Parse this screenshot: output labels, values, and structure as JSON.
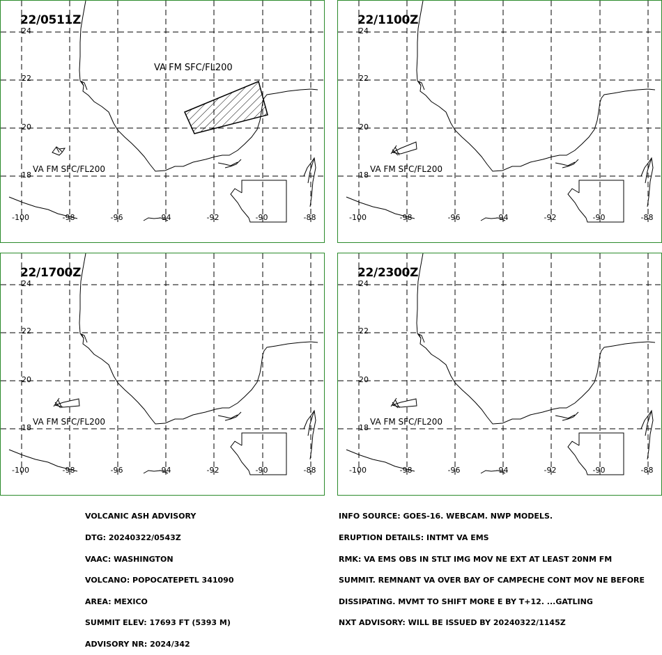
{
  "panels": [
    {
      "time": "22/0511Z",
      "label": "VA FM SFC/FL200",
      "label_top": "VA FM SFC/FL200"
    },
    {
      "time": "22/1100Z",
      "label": "VA FM SFC/FL200"
    },
    {
      "time": "22/1700Z",
      "label": "VA FM SFC/FL200"
    },
    {
      "time": "22/2300Z",
      "label": "VA FM SFC/FL200"
    }
  ],
  "axes": {
    "lat_labels": [
      "24",
      "22",
      "20",
      "18"
    ],
    "lon_labels": [
      "-100",
      "-98",
      "-96",
      "-94",
      "-92",
      "-90",
      "-88"
    ]
  },
  "advisory_left": [
    "VOLCANIC ASH ADVISORY",
    "DTG: 20240322/0543Z",
    "VAAC: WASHINGTON",
    "VOLCANO: POPOCATEPETL 341090",
    "AREA: MEXICO",
    "SUMMIT ELEV: 17693 FT (5393 M)",
    "ADVISORY NR: 2024/342"
  ],
  "advisory_right": [
    "INFO SOURCE: GOES-16. WEBCAM. NWP MODELS.",
    "ERUPTION DETAILS: INTMT VA EMS",
    "RMK: VA EMS OBS IN STLT IMG MOV NE EXT AT LEAST 20NM FM",
    "SUMMIT. REMNANT VA OVER BAY OF CAMPECHE CONT MOV NE BEFORE",
    "DISSIPATING. MVMT TO SHIFT MORE E BY T+12. ...GATLING",
    "NXT ADVISORY: WILL BE ISSUED BY 20240322/1145Z"
  ],
  "colors": {
    "panel_border": "#2a8a2a",
    "lines": "#000000"
  }
}
